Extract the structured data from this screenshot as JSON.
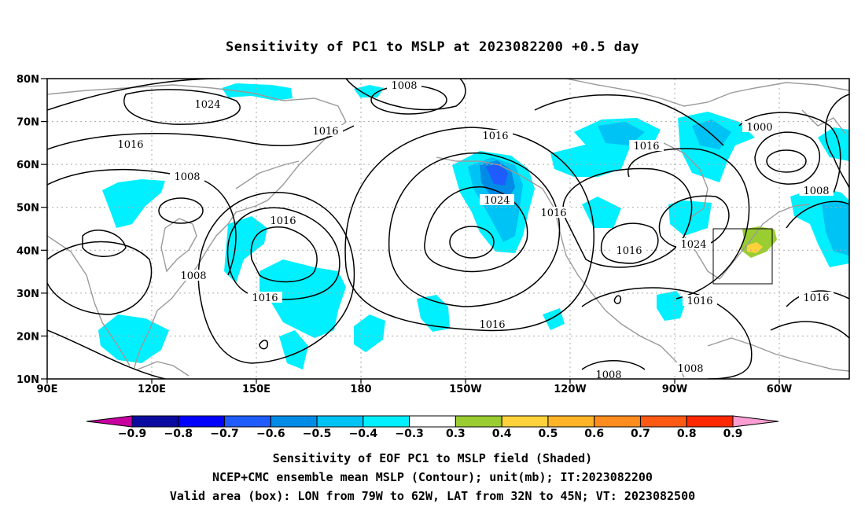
{
  "title": "Sensitivity of PC1 to MSLP at 2023082200 +0.5 day",
  "lat_labels": [
    "80N",
    "70N",
    "60N",
    "50N",
    "40N",
    "30N",
    "20N",
    "10N"
  ],
  "lon_labels": [
    "90E",
    "120E",
    "150E",
    "180",
    "150W",
    "120W",
    "90W",
    "60W"
  ],
  "contour_labels": [
    "1008",
    "1024",
    "1016",
    "1016",
    "1016",
    "1016",
    "1000",
    "1008",
    "1008",
    "1024",
    "1016",
    "1016",
    "1016",
    "1024",
    "1008",
    "1016",
    "1016",
    "1016",
    "1016",
    "1008",
    "1008"
  ],
  "colorbar": {
    "labels": [
      "-0.9",
      "-0.8",
      "-0.7",
      "-0.6",
      "-0.5",
      "-0.4",
      "-0.3",
      "0.3",
      "0.4",
      "0.5",
      "0.6",
      "0.7",
      "0.8",
      "0.9"
    ],
    "colors": [
      "#0a0aa0",
      "#0000ff",
      "#1e5cff",
      "#008ce6",
      "#00c3f5",
      "#00f0ff",
      "#ffffff",
      "#9acd32",
      "#ffd23c",
      "#ffb428",
      "#ff8c1e",
      "#ff5a14",
      "#ff2800",
      "#ff0000"
    ],
    "low_arrow_color": "#c800a0",
    "high_arrow_color": "#ff9ed2"
  },
  "captions": [
    "Sensitivity of EOF PC1 to MSLP field (Shaded)",
    "NCEP+CMC ensemble mean MSLP (Contour); unit(mb); IT:2023082200",
    "Valid area (box): LON from 79W to 62W, LAT from 32N to 45N; VT: 2023082500"
  ]
}
